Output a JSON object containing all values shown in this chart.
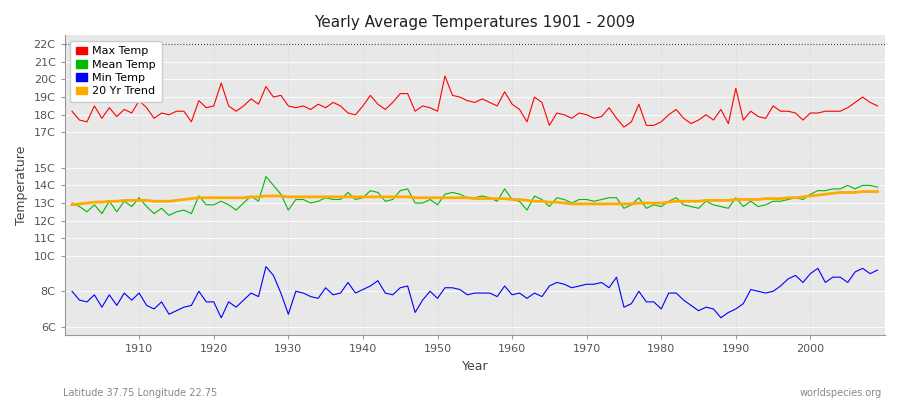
{
  "title": "Yearly Average Temperatures 1901 - 2009",
  "xlabel": "Year",
  "ylabel": "Temperature",
  "footnote_left": "Latitude 37.75 Longitude 22.75",
  "footnote_right": "worldspecies.org",
  "ymin": 5.5,
  "ymax": 22.5,
  "xmin": 1900,
  "xmax": 2010,
  "legend_labels": [
    "Max Temp",
    "Mean Temp",
    "Min Temp",
    "20 Yr Trend"
  ],
  "legend_colors": [
    "#ff0000",
    "#00bb00",
    "#0000ff",
    "#ffaa00"
  ],
  "max_temp": [
    18.2,
    17.7,
    17.6,
    18.5,
    17.8,
    18.4,
    17.9,
    18.3,
    18.1,
    18.8,
    18.4,
    17.8,
    18.1,
    18.0,
    18.2,
    18.2,
    17.6,
    18.8,
    18.4,
    18.5,
    19.8,
    18.5,
    18.2,
    18.5,
    18.9,
    18.6,
    19.6,
    19.0,
    19.1,
    18.5,
    18.4,
    18.5,
    18.3,
    18.6,
    18.4,
    18.7,
    18.5,
    18.1,
    18.0,
    18.5,
    19.1,
    18.6,
    18.3,
    18.7,
    19.2,
    19.2,
    18.2,
    18.5,
    18.4,
    18.2,
    20.2,
    19.1,
    19.0,
    18.8,
    18.7,
    18.9,
    18.7,
    18.5,
    19.3,
    18.6,
    18.3,
    17.6,
    19.0,
    18.7,
    17.4,
    18.1,
    18.0,
    17.8,
    18.1,
    18.0,
    17.8,
    17.9,
    18.4,
    17.8,
    17.3,
    17.6,
    18.6,
    17.4,
    17.4,
    17.6,
    18.0,
    18.3,
    17.8,
    17.5,
    17.7,
    18.0,
    17.7,
    18.3,
    17.5,
    19.5,
    17.7,
    18.2,
    17.9,
    17.8,
    18.5,
    18.2,
    18.2,
    18.1,
    17.7,
    18.1,
    18.1,
    18.2,
    18.2,
    18.2,
    18.4,
    18.7,
    19.0,
    18.7,
    18.5
  ],
  "mean_temp": [
    13.0,
    12.8,
    12.5,
    12.9,
    12.4,
    13.1,
    12.5,
    13.1,
    12.8,
    13.3,
    12.8,
    12.4,
    12.7,
    12.3,
    12.5,
    12.6,
    12.4,
    13.4,
    12.9,
    12.9,
    13.1,
    12.9,
    12.6,
    13.0,
    13.4,
    13.1,
    14.5,
    14.0,
    13.5,
    12.6,
    13.2,
    13.2,
    13.0,
    13.1,
    13.3,
    13.2,
    13.2,
    13.6,
    13.2,
    13.3,
    13.7,
    13.6,
    13.1,
    13.2,
    13.7,
    13.8,
    13.0,
    13.0,
    13.2,
    12.9,
    13.5,
    13.6,
    13.5,
    13.3,
    13.3,
    13.4,
    13.3,
    13.1,
    13.8,
    13.2,
    13.1,
    12.6,
    13.4,
    13.2,
    12.8,
    13.3,
    13.2,
    13.0,
    13.2,
    13.2,
    13.1,
    13.2,
    13.3,
    13.3,
    12.7,
    12.9,
    13.3,
    12.7,
    12.9,
    12.8,
    13.1,
    13.3,
    12.9,
    12.8,
    12.7,
    13.1,
    12.9,
    12.8,
    12.7,
    13.3,
    12.8,
    13.1,
    12.8,
    12.9,
    13.1,
    13.1,
    13.2,
    13.3,
    13.2,
    13.5,
    13.7,
    13.7,
    13.8,
    13.8,
    14.0,
    13.8,
    14.0,
    14.0,
    13.9
  ],
  "min_temp": [
    8.0,
    7.5,
    7.4,
    7.8,
    7.1,
    7.8,
    7.2,
    7.9,
    7.5,
    7.9,
    7.2,
    7.0,
    7.4,
    6.7,
    6.9,
    7.1,
    7.2,
    8.0,
    7.4,
    7.4,
    6.5,
    7.4,
    7.1,
    7.5,
    7.9,
    7.7,
    9.4,
    8.9,
    7.9,
    6.7,
    8.0,
    7.9,
    7.7,
    7.6,
    8.2,
    7.8,
    7.9,
    8.5,
    7.9,
    8.1,
    8.3,
    8.6,
    7.9,
    7.8,
    8.2,
    8.3,
    6.8,
    7.5,
    8.0,
    7.6,
    8.2,
    8.2,
    8.1,
    7.8,
    7.9,
    7.9,
    7.9,
    7.7,
    8.3,
    7.8,
    7.9,
    7.6,
    7.9,
    7.7,
    8.3,
    8.5,
    8.4,
    8.2,
    8.3,
    8.4,
    8.4,
    8.5,
    8.2,
    8.8,
    7.1,
    7.3,
    8.0,
    7.4,
    7.4,
    7.0,
    7.9,
    7.9,
    7.5,
    7.2,
    6.9,
    7.1,
    7.0,
    6.5,
    6.8,
    7.0,
    7.3,
    8.1,
    8.0,
    7.9,
    8.0,
    8.3,
    8.7,
    8.9,
    8.5,
    9.0,
    9.3,
    8.5,
    8.8,
    8.8,
    8.5,
    9.1,
    9.3,
    9.0,
    9.2
  ],
  "trend_years": [
    1901,
    1902,
    1903,
    1904,
    1905,
    1906,
    1907,
    1908,
    1909,
    1910,
    1911,
    1912,
    1913,
    1914,
    1915,
    1916,
    1917,
    1918,
    1919,
    1920,
    1921,
    1922,
    1923,
    1924,
    1925,
    1926,
    1927,
    1928,
    1929,
    1930,
    1931,
    1932,
    1933,
    1934,
    1935,
    1936,
    1937,
    1938,
    1939,
    1940,
    1941,
    1942,
    1943,
    1944,
    1945,
    1946,
    1947,
    1948,
    1949,
    1950,
    1951,
    1952,
    1953,
    1954,
    1955,
    1956,
    1957,
    1958,
    1959,
    1960,
    1961,
    1962,
    1963,
    1964,
    1965,
    1966,
    1967,
    1968,
    1969,
    1970,
    1971,
    1972,
    1973,
    1974,
    1975,
    1976,
    1977,
    1978,
    1979,
    1980,
    1981,
    1982,
    1983,
    1984,
    1985,
    1986,
    1987,
    1988,
    1989,
    1990,
    1991,
    1992,
    1993,
    1994,
    1995,
    1996,
    1997,
    1998,
    1999,
    2000,
    2001,
    2002,
    2003,
    2004,
    2005,
    2006,
    2007,
    2008,
    2009
  ],
  "trend_values": [
    12.9,
    12.95,
    13.0,
    13.05,
    13.05,
    13.1,
    13.1,
    13.15,
    13.15,
    13.15,
    13.15,
    13.1,
    13.1,
    13.1,
    13.15,
    13.2,
    13.25,
    13.3,
    13.3,
    13.3,
    13.3,
    13.3,
    13.3,
    13.3,
    13.35,
    13.35,
    13.4,
    13.4,
    13.4,
    13.35,
    13.35,
    13.35,
    13.35,
    13.35,
    13.35,
    13.35,
    13.35,
    13.35,
    13.35,
    13.35,
    13.35,
    13.35,
    13.35,
    13.35,
    13.35,
    13.35,
    13.3,
    13.3,
    13.3,
    13.3,
    13.3,
    13.3,
    13.3,
    13.3,
    13.25,
    13.25,
    13.25,
    13.25,
    13.25,
    13.2,
    13.2,
    13.15,
    13.1,
    13.1,
    13.05,
    13.05,
    13.0,
    12.95,
    12.95,
    12.95,
    12.95,
    12.95,
    12.95,
    12.95,
    12.95,
    12.95,
    13.0,
    13.0,
    13.0,
    13.0,
    13.05,
    13.1,
    13.1,
    13.1,
    13.1,
    13.15,
    13.15,
    13.15,
    13.15,
    13.2,
    13.2,
    13.2,
    13.2,
    13.25,
    13.25,
    13.25,
    13.3,
    13.3,
    13.35,
    13.4,
    13.45,
    13.5,
    13.55,
    13.6,
    13.6,
    13.6,
    13.65,
    13.65,
    13.65
  ]
}
